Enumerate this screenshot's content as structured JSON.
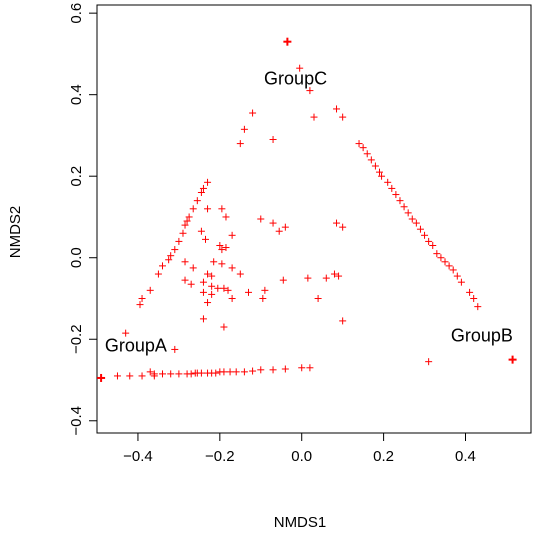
{
  "chart_data": {
    "type": "scatter",
    "xlabel": "NMDS1",
    "ylabel": "NMDS2",
    "xlim": [
      -0.5,
      0.56
    ],
    "ylim": [
      -0.43,
      0.62
    ],
    "xticks": [
      -0.4,
      -0.2,
      0.0,
      0.2,
      0.4
    ],
    "yticks": [
      -0.4,
      -0.2,
      0.0,
      0.2,
      0.4,
      0.6
    ],
    "xtick_labels": [
      "−0.4",
      "−0.2",
      "0.0",
      "0.2",
      "0.4"
    ],
    "ytick_labels": [
      "−0.4",
      "−0.2",
      "0.0",
      "0.2",
      "0.4",
      "0.6"
    ],
    "marker": "+",
    "color": "#ff0000",
    "group_labels": [
      {
        "text": "GroupA",
        "x": -0.405,
        "y": -0.23
      },
      {
        "text": "GroupB",
        "x": 0.44,
        "y": -0.205
      },
      {
        "text": "GroupC",
        "x": -0.015,
        "y": 0.425
      }
    ],
    "group_centroids": [
      {
        "name": "GroupA",
        "x": -0.49,
        "y": -0.295
      },
      {
        "name": "GroupB",
        "x": 0.515,
        "y": -0.25
      },
      {
        "name": "GroupC",
        "x": -0.035,
        "y": 0.53
      }
    ],
    "points": [
      [
        -0.49,
        -0.295
      ],
      [
        -0.45,
        -0.29
      ],
      [
        -0.42,
        -0.29
      ],
      [
        -0.39,
        -0.29
      ],
      [
        -0.36,
        -0.29
      ],
      [
        -0.34,
        -0.285
      ],
      [
        -0.32,
        -0.285
      ],
      [
        -0.3,
        -0.285
      ],
      [
        -0.28,
        -0.285
      ],
      [
        -0.27,
        -0.285
      ],
      [
        -0.26,
        -0.283
      ],
      [
        -0.255,
        -0.283
      ],
      [
        -0.245,
        -0.283
      ],
      [
        -0.23,
        -0.283
      ],
      [
        -0.22,
        -0.283
      ],
      [
        -0.21,
        -0.283
      ],
      [
        -0.2,
        -0.28
      ],
      [
        -0.19,
        -0.28
      ],
      [
        -0.175,
        -0.28
      ],
      [
        -0.16,
        -0.28
      ],
      [
        -0.14,
        -0.28
      ],
      [
        -0.12,
        -0.278
      ],
      [
        -0.1,
        -0.275
      ],
      [
        -0.07,
        -0.275
      ],
      [
        -0.04,
        -0.273
      ],
      [
        0.0,
        -0.27
      ],
      [
        0.02,
        -0.27
      ],
      [
        0.31,
        -0.255
      ],
      [
        0.515,
        -0.25
      ],
      [
        -0.43,
        -0.185
      ],
      [
        -0.395,
        -0.115
      ],
      [
        -0.39,
        -0.1
      ],
      [
        -0.37,
        -0.08
      ],
      [
        -0.35,
        -0.04
      ],
      [
        -0.34,
        -0.02
      ],
      [
        -0.325,
        -0.005
      ],
      [
        -0.32,
        0.005
      ],
      [
        -0.31,
        0.02
      ],
      [
        -0.3,
        0.04
      ],
      [
        -0.29,
        0.06
      ],
      [
        -0.285,
        0.08
      ],
      [
        -0.28,
        0.09
      ],
      [
        -0.275,
        0.1
      ],
      [
        -0.265,
        0.12
      ],
      [
        -0.255,
        0.14
      ],
      [
        -0.245,
        0.16
      ],
      [
        -0.24,
        0.17
      ],
      [
        -0.23,
        0.185
      ],
      [
        -0.035,
        0.53
      ],
      [
        -0.005,
        0.465
      ],
      [
        0.02,
        0.41
      ],
      [
        0.03,
        0.345
      ],
      [
        0.085,
        0.365
      ],
      [
        0.1,
        0.345
      ],
      [
        0.14,
        0.28
      ],
      [
        0.15,
        0.27
      ],
      [
        0.16,
        0.255
      ],
      [
        0.17,
        0.24
      ],
      [
        0.18,
        0.225
      ],
      [
        0.19,
        0.21
      ],
      [
        0.195,
        0.2
      ],
      [
        0.21,
        0.185
      ],
      [
        0.22,
        0.17
      ],
      [
        0.23,
        0.155
      ],
      [
        0.24,
        0.14
      ],
      [
        0.25,
        0.125
      ],
      [
        0.26,
        0.11
      ],
      [
        0.27,
        0.095
      ],
      [
        0.28,
        0.085
      ],
      [
        0.29,
        0.07
      ],
      [
        0.3,
        0.055
      ],
      [
        0.31,
        0.04
      ],
      [
        0.32,
        0.03
      ],
      [
        0.33,
        0.01
      ],
      [
        0.34,
        0.0
      ],
      [
        0.35,
        -0.01
      ],
      [
        0.36,
        -0.02
      ],
      [
        0.37,
        -0.03
      ],
      [
        0.38,
        -0.045
      ],
      [
        0.39,
        -0.06
      ],
      [
        0.41,
        -0.085
      ],
      [
        0.42,
        -0.1
      ],
      [
        0.43,
        -0.12
      ],
      [
        -0.12,
        0.355
      ],
      [
        -0.14,
        0.315
      ],
      [
        -0.15,
        0.28
      ],
      [
        -0.07,
        0.29
      ],
      [
        -0.23,
        0.12
      ],
      [
        -0.195,
        0.12
      ],
      [
        -0.185,
        0.1
      ],
      [
        -0.245,
        0.065
      ],
      [
        -0.235,
        0.045
      ],
      [
        -0.17,
        0.055
      ],
      [
        -0.1,
        0.095
      ],
      [
        -0.07,
        0.085
      ],
      [
        -0.04,
        0.075
      ],
      [
        -0.055,
        0.065
      ],
      [
        -0.2,
        0.03
      ],
      [
        -0.195,
        0.02
      ],
      [
        -0.185,
        0.025
      ],
      [
        -0.285,
        -0.01
      ],
      [
        -0.265,
        -0.025
      ],
      [
        -0.215,
        -0.01
      ],
      [
        -0.195,
        -0.015
      ],
      [
        -0.17,
        -0.025
      ],
      [
        -0.23,
        -0.04
      ],
      [
        -0.22,
        -0.045
      ],
      [
        -0.15,
        -0.04
      ],
      [
        -0.285,
        -0.055
      ],
      [
        -0.27,
        -0.065
      ],
      [
        -0.24,
        -0.06
      ],
      [
        -0.22,
        -0.07
      ],
      [
        -0.205,
        -0.075
      ],
      [
        -0.19,
        -0.075
      ],
      [
        -0.18,
        -0.08
      ],
      [
        -0.24,
        -0.085
      ],
      [
        -0.22,
        -0.09
      ],
      [
        -0.13,
        -0.085
      ],
      [
        -0.09,
        -0.08
      ],
      [
        -0.045,
        -0.055
      ],
      [
        -0.095,
        -0.1
      ],
      [
        -0.23,
        -0.11
      ],
      [
        -0.17,
        -0.1
      ],
      [
        -0.24,
        -0.15
      ],
      [
        -0.19,
        -0.17
      ],
      [
        0.085,
        0.085
      ],
      [
        0.1,
        0.075
      ],
      [
        0.08,
        -0.04
      ],
      [
        0.09,
        -0.045
      ],
      [
        0.06,
        -0.05
      ],
      [
        0.015,
        -0.05
      ],
      [
        0.04,
        -0.1
      ],
      [
        0.1,
        -0.155
      ],
      [
        -0.31,
        -0.225
      ],
      [
        -0.37,
        -0.28
      ],
      [
        -0.36,
        -0.285
      ]
    ]
  }
}
